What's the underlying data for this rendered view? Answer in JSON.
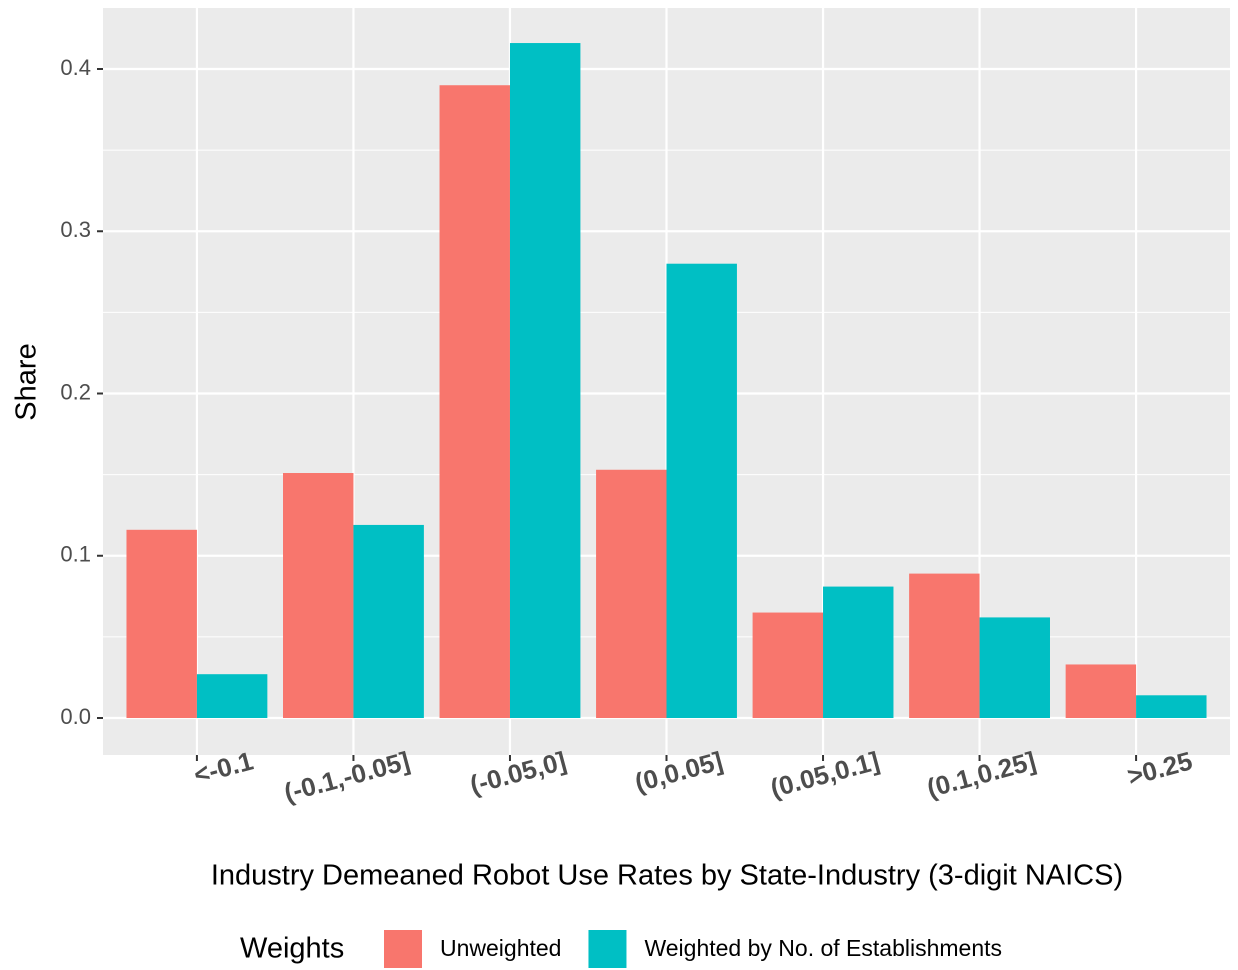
{
  "chart_data": {
    "type": "bar",
    "x_label": "Industry Demeaned Robot Use Rates by State-Industry (3-digit NAICS)",
    "y_label": "Share",
    "categories": [
      "<-0.1",
      "(-0.1,-0.05]",
      "(-0.05,0]",
      "(0,0.05]",
      "(0.05,0.1]",
      "(0.1,0.25]",
      ">0.25"
    ],
    "series": [
      {
        "name": "Unweighted",
        "color": "#f8766d",
        "values": [
          0.116,
          0.151,
          0.39,
          0.153,
          0.065,
          0.089,
          0.033
        ]
      },
      {
        "name": "Weighted by No. of Establishments",
        "color": "#00bfc4",
        "values": [
          0.027,
          0.119,
          0.416,
          0.28,
          0.081,
          0.062,
          0.014
        ]
      }
    ],
    "ylim": [
      -0.0228,
      0.4376
    ],
    "yticks": [
      {
        "value": 0,
        "label": "0.0"
      },
      0.1,
      0.2,
      0.3,
      0.4
    ],
    "grid": true,
    "legend_title": "Weights",
    "legend_position": "bottom"
  }
}
